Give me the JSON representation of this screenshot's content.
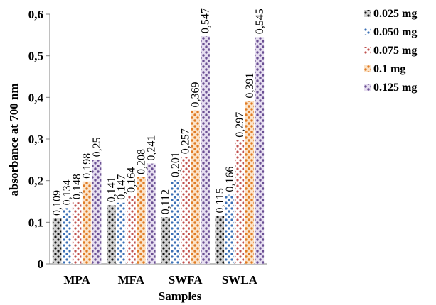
{
  "chart_data": {
    "type": "bar",
    "xlabel": "Samples",
    "ylabel": "absorbance at 700 nm",
    "ylim": [
      0,
      0.6
    ],
    "yticks": [
      "0",
      "0,1",
      "0,2",
      "0,3",
      "0,4",
      "0,5",
      "0,6"
    ],
    "categories": [
      "MPA",
      "MFA",
      "SWFA",
      "SWLA"
    ],
    "grid": false,
    "legend_position": "right",
    "series": [
      {
        "name": "0.025 mg",
        "values": [
          0.109,
          0.141,
          0.112,
          0.115
        ],
        "labels": [
          "0,109",
          "0,141",
          "0,112",
          "0,115"
        ],
        "color": "#1a1a1a"
      },
      {
        "name": "0.050 mg",
        "values": [
          0.134,
          0.147,
          0.201,
          0.166
        ],
        "labels": [
          "0,134",
          "0,147",
          "0,201",
          "0,166"
        ],
        "color": "#4a7fc1"
      },
      {
        "name": "0.075 mg",
        "values": [
          0.148,
          0.164,
          0.257,
          0.297
        ],
        "labels": [
          "0,148",
          "0,164",
          "0,257",
          "0,297"
        ],
        "color": "#c0504d"
      },
      {
        "name": "0.1 mg",
        "values": [
          0.198,
          0.208,
          0.369,
          0.391
        ],
        "labels": [
          "0,198",
          "0,208",
          "0,369",
          "0,391"
        ],
        "color": "#e8883a"
      },
      {
        "name": "0.125 mg",
        "values": [
          0.25,
          0.241,
          0.547,
          0.545
        ],
        "labels": [
          "0,25",
          "0,241",
          "0,547",
          "0,545"
        ],
        "color": "#8064a2"
      }
    ]
  }
}
